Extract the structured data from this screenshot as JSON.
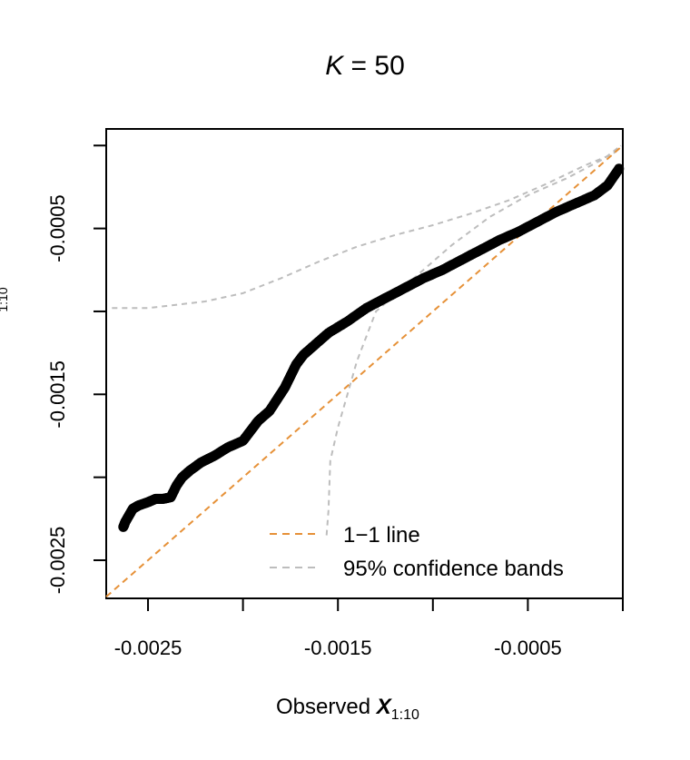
{
  "chart_data": {
    "type": "scatter",
    "title_prefix": "K",
    "title_eq": " = ",
    "title_value": "50",
    "xlabel_main": "Observed ",
    "xlabel_bold": "X",
    "xlabel_sub": "1:10",
    "ylabel_cut": "1:10",
    "xlim": [
      -0.00272,
      0.0
    ],
    "ylim": [
      -0.00273,
      0.0001
    ],
    "x_ticks": [
      -0.0025,
      -0.002,
      -0.0015,
      -0.001,
      -0.0005,
      0.0
    ],
    "x_tick_labels": [
      "-0.0025",
      "",
      "-0.0015",
      "",
      "-0.0005",
      ""
    ],
    "y_ticks": [
      -0.0025,
      -0.002,
      -0.0015,
      -0.001,
      -0.0005,
      0.0
    ],
    "y_tick_labels": [
      "-0.0025",
      "",
      "-0.0015",
      "",
      "-0.0005",
      ""
    ],
    "points_curve": [
      [
        -0.00263,
        -0.0023
      ],
      [
        -0.00262,
        -0.00227
      ],
      [
        -0.0026,
        -0.00223
      ],
      [
        -0.00258,
        -0.00219
      ],
      [
        -0.00255,
        -0.00217
      ],
      [
        -0.0025,
        -0.00215
      ],
      [
        -0.00246,
        -0.00213
      ],
      [
        -0.00242,
        -0.00213
      ],
      [
        -0.00238,
        -0.00212
      ],
      [
        -0.00235,
        -0.00205
      ],
      [
        -0.00232,
        -0.002
      ],
      [
        -0.00228,
        -0.00196
      ],
      [
        -0.00222,
        -0.00191
      ],
      [
        -0.00215,
        -0.00187
      ],
      [
        -0.00208,
        -0.00182
      ],
      [
        -0.002,
        -0.00178
      ],
      [
        -0.00196,
        -0.00172
      ],
      [
        -0.00192,
        -0.00166
      ],
      [
        -0.00186,
        -0.0016
      ],
      [
        -0.00182,
        -0.00153
      ],
      [
        -0.00178,
        -0.00146
      ],
      [
        -0.00175,
        -0.00139
      ],
      [
        -0.00172,
        -0.00132
      ],
      [
        -0.00168,
        -0.00126
      ],
      [
        -0.00162,
        -0.0012
      ],
      [
        -0.00155,
        -0.00113
      ],
      [
        -0.00145,
        -0.00106
      ],
      [
        -0.00135,
        -0.00098
      ],
      [
        -0.00125,
        -0.00092
      ],
      [
        -0.00115,
        -0.00086
      ],
      [
        -0.00105,
        -0.0008
      ],
      [
        -0.00095,
        -0.00075
      ],
      [
        -0.00085,
        -0.00069
      ],
      [
        -0.00075,
        -0.00063
      ],
      [
        -0.00065,
        -0.00057
      ],
      [
        -0.00055,
        -0.00052
      ],
      [
        -0.00045,
        -0.00046
      ],
      [
        -0.00035,
        -0.0004
      ],
      [
        -0.00025,
        -0.00035
      ],
      [
        -0.00015,
        -0.0003
      ],
      [
        -8e-05,
        -0.00024
      ],
      [
        -2e-05,
        -0.00014
      ]
    ],
    "upper_band": [
      [
        -0.00269,
        -0.00098
      ],
      [
        -0.0025,
        -0.00098
      ],
      [
        -0.0022,
        -0.00094
      ],
      [
        -0.002,
        -0.00089
      ],
      [
        -0.0018,
        -0.0008
      ],
      [
        -0.0016,
        -0.0007
      ],
      [
        -0.0014,
        -0.00061
      ],
      [
        -0.0012,
        -0.00054
      ],
      [
        -0.001,
        -0.00048
      ],
      [
        -0.0008,
        -0.00041
      ],
      [
        -0.0006,
        -0.00033
      ],
      [
        -0.0004,
        -0.00023
      ],
      [
        -0.0002,
        -0.00012
      ],
      [
        -5e-05,
        -5e-05
      ],
      [
        -1e-05,
        0.0
      ]
    ],
    "lower_band": [
      [
        -0.00156,
        -0.00235
      ],
      [
        -0.00155,
        -0.0022
      ],
      [
        -0.00154,
        -0.0019
      ],
      [
        -0.0015,
        -0.0017
      ],
      [
        -0.00145,
        -0.0015
      ],
      [
        -0.0014,
        -0.0013
      ],
      [
        -0.0013,
        -0.001
      ],
      [
        -0.0011,
        -0.0008
      ],
      [
        -0.0009,
        -0.0006
      ],
      [
        -0.0007,
        -0.00043
      ],
      [
        -0.0005,
        -0.0003
      ],
      [
        -0.0003,
        -0.0002
      ],
      [
        -0.0001,
        -8e-05
      ],
      [
        -1e-05,
        0.0
      ]
    ],
    "line_color_1to1": "#E69138",
    "band_color": "#BDBDBD",
    "point_color": "#000000",
    "legend": [
      {
        "label": "1−1 line",
        "color": "#E69138"
      },
      {
        "label": "95% confidence bands",
        "color": "#BDBDBD"
      }
    ],
    "legend_position": "bottom-right"
  }
}
